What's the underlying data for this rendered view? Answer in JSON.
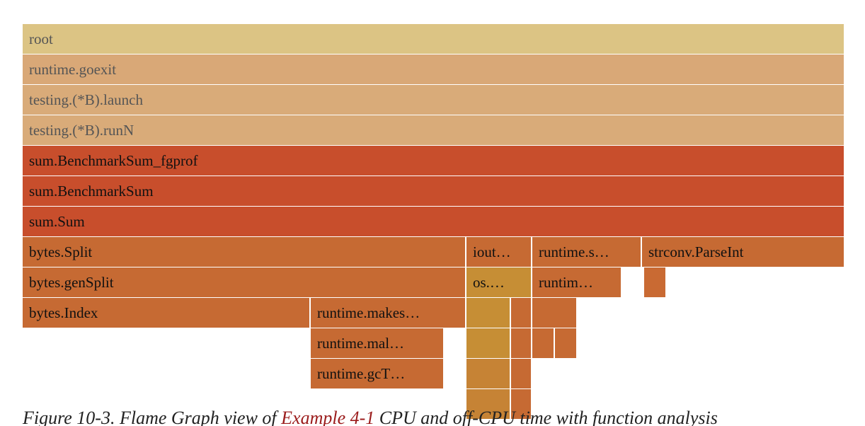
{
  "frames": [
    {
      "label": "root"
    },
    {
      "label": "runtime.goexit"
    },
    {
      "label": "testing.(*B).launch"
    },
    {
      "label": "testing.(*B).runN"
    },
    {
      "label": "sum.BenchmarkSum_fgprof"
    },
    {
      "label": "sum.BenchmarkSum"
    },
    {
      "label": "sum.Sum"
    },
    {
      "label": "bytes.Split"
    },
    {
      "label": "iout…"
    },
    {
      "label": "runtime.s…"
    },
    {
      "label": "strconv.ParseInt"
    },
    {
      "label": "bytes.genSplit"
    },
    {
      "label": "os.…"
    },
    {
      "label": "runtim…"
    },
    {
      "label": "bytes.Index"
    },
    {
      "label": "runtime.makes…"
    },
    {
      "label": "runtime.mal…"
    },
    {
      "label": "runtime.gcT…"
    }
  ],
  "caption": {
    "prefix": "Figure 10-3. Flame Graph view of ",
    "link": "Example 4-1",
    "suffix": " CPU and off-CPU time with function analysis"
  }
}
